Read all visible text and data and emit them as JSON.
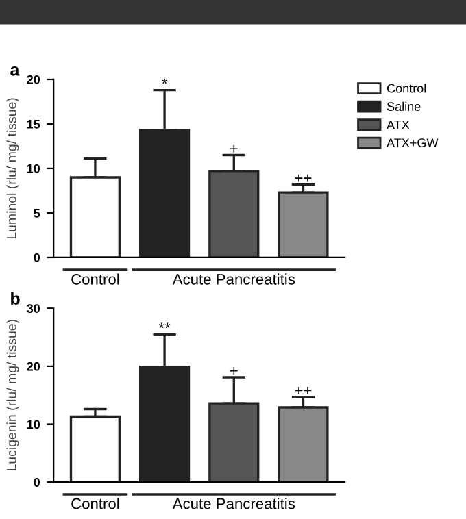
{
  "chart_data": [
    {
      "type": "bar",
      "title": "a",
      "ylabel": "Luminol (rlu/ mg/ tissue)",
      "categories": [
        null,
        null,
        null,
        null
      ],
      "series": [
        {
          "name": "Control",
          "color": "#ffffff",
          "values": [
            9.0,
            null,
            null,
            null
          ],
          "errors": [
            2.1,
            null,
            null,
            null
          ],
          "value_labels": [
            null,
            null,
            null,
            null
          ]
        },
        {
          "name": "Saline",
          "color": "#222222",
          "values": [
            null,
            14.3,
            null,
            null
          ],
          "errors": [
            null,
            4.5,
            null,
            null
          ],
          "value_labels": [
            null,
            "*",
            null,
            null
          ]
        },
        {
          "name": "ATX",
          "color": "#555555",
          "values": [
            null,
            null,
            9.7,
            null
          ],
          "errors": [
            null,
            null,
            1.8,
            null
          ],
          "value_labels": [
            null,
            null,
            "+",
            null
          ]
        },
        {
          "name": "ATX+GW",
          "color": "#888888",
          "values": [
            null,
            null,
            null,
            7.3
          ],
          "errors": [
            null,
            null,
            null,
            0.9
          ],
          "value_labels": [
            null,
            null,
            null,
            "++"
          ]
        }
      ],
      "ylim": [
        0,
        20
      ],
      "yticks": [
        0,
        5,
        10,
        15,
        20
      ],
      "legend": "right",
      "grid": false,
      "annotations": [
        "Control",
        "Acute Pancreatitis"
      ]
    },
    {
      "type": "bar",
      "title": "b",
      "ylabel": "Lucigenin (rlu/ mg/ tissue)",
      "categories": [
        null,
        null,
        null,
        null
      ],
      "series": [
        {
          "color": "#ffffff",
          "values": [
            11.3,
            null,
            null,
            null
          ],
          "errors": [
            1.3,
            null,
            null,
            null
          ],
          "value_labels": [
            null,
            null,
            null,
            null
          ]
        },
        {
          "color": "#222222",
          "values": [
            null,
            19.9,
            null,
            null
          ],
          "errors": [
            null,
            5.6,
            null,
            null
          ],
          "value_labels": [
            null,
            "**",
            null,
            null
          ]
        },
        {
          "color": "#555555",
          "values": [
            null,
            null,
            13.6,
            null
          ],
          "errors": [
            null,
            null,
            4.5,
            null
          ],
          "value_labels": [
            null,
            null,
            "+",
            null
          ]
        },
        {
          "color": "#888888",
          "values": [
            null,
            null,
            null,
            12.9
          ],
          "errors": [
            null,
            null,
            null,
            1.8
          ],
          "value_labels": [
            null,
            null,
            null,
            "++"
          ]
        }
      ],
      "ylim": [
        0,
        30
      ],
      "yticks": [
        0,
        10,
        20,
        30
      ],
      "grid": false,
      "annotations": [
        "Control",
        "Acute Pancreatitis"
      ]
    }
  ]
}
